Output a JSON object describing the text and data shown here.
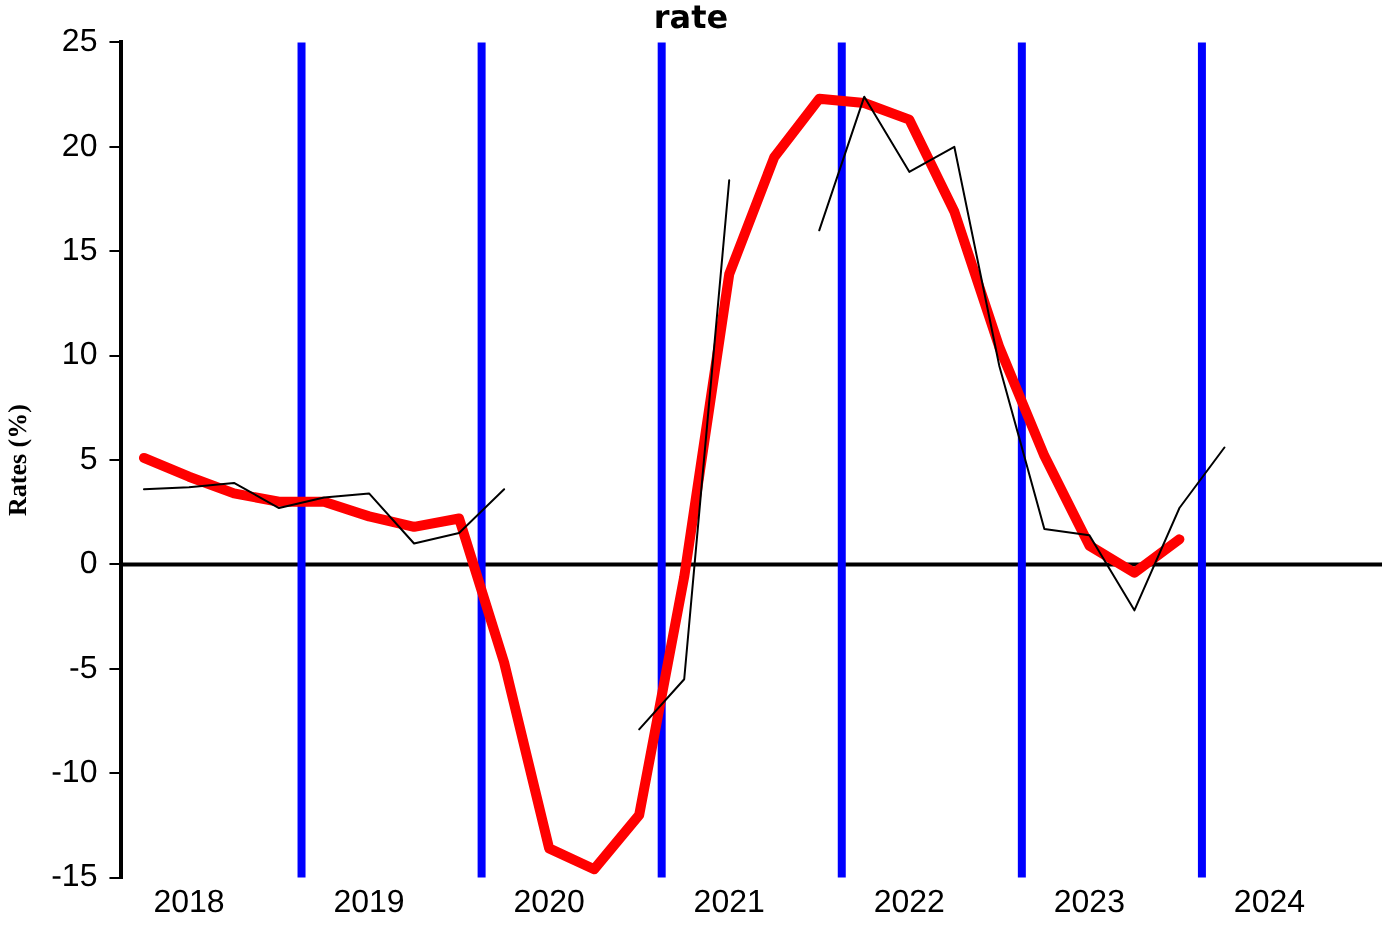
{
  "chart_data": {
    "type": "line",
    "title": "rate",
    "ylabel": "Rates (%)",
    "x": [
      2018.125,
      2018.375,
      2018.625,
      2018.875,
      2019.125,
      2019.375,
      2019.625,
      2019.875,
      2020.125,
      2020.375,
      2020.625,
      2020.875,
      2021.125,
      2021.375,
      2021.625,
      2021.875,
      2022.125,
      2022.375,
      2022.625,
      2022.875,
      2023.125,
      2023.375,
      2023.625,
      2023.875,
      2024.125
    ],
    "series": [
      {
        "color": "#000000",
        "values": [
          3.6,
          3.7,
          3.9,
          2.7,
          3.2,
          3.4,
          1.0,
          1.5,
          3.6,
          null,
          null,
          -7.9,
          -5.5,
          18.4,
          null,
          16.0,
          22.4,
          18.8,
          20.0,
          9.5,
          1.7,
          1.4,
          -2.2,
          2.7,
          5.6
        ]
      },
      {
        "color": "#ff0000",
        "values": [
          5.1,
          4.2,
          3.4,
          3.0,
          3.0,
          2.3,
          1.8,
          2.2,
          -4.7,
          -13.6,
          -14.6,
          -12.0,
          -0.6,
          13.9,
          19.5,
          22.3,
          22.1,
          21.3,
          16.9,
          10.4,
          5.2,
          0.9,
          -0.4,
          1.2,
          null
        ]
      }
    ],
    "xlim": [
      2018,
      2025
    ],
    "xticks": [
      {
        "value": 2018.375,
        "label": "2018"
      },
      {
        "value": 2019.375,
        "label": "2019"
      },
      {
        "value": 2020.375,
        "label": "2020"
      },
      {
        "value": 2021.375,
        "label": "2021"
      },
      {
        "value": 2022.375,
        "label": "2022"
      },
      {
        "value": 2023.375,
        "label": "2023"
      },
      {
        "value": 2024.375,
        "label": "2024"
      }
    ],
    "ylim": [
      -15,
      25
    ],
    "yticks": [
      -15,
      -10,
      -5,
      0,
      5,
      10,
      15,
      20,
      25
    ],
    "ref_lines": [
      {
        "axis": "y",
        "value": 0,
        "color": "#000000"
      },
      {
        "axis": "x",
        "value": 2019,
        "color": "#0000ff"
      },
      {
        "axis": "x",
        "value": 2020,
        "color": "#0000ff"
      },
      {
        "axis": "x",
        "value": 2021,
        "color": "#0000ff"
      },
      {
        "axis": "x",
        "value": 2022,
        "color": "#0000ff"
      },
      {
        "axis": "x",
        "value": 2023,
        "color": "#0000ff"
      },
      {
        "axis": "x",
        "value": 2024,
        "color": "#0000ff"
      }
    ],
    "grid": false,
    "legend": false,
    "marker": "none",
    "line_style": "solid"
  }
}
